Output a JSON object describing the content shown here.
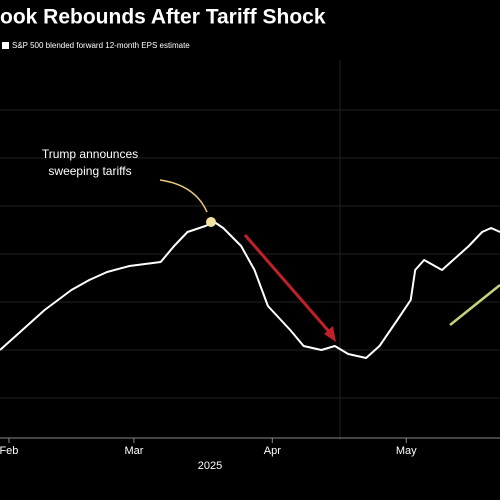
{
  "chart_data": {
    "type": "line",
    "title": "ook Rebounds After Tariff Shock",
    "legend_label": "S&P 500 blended forward 12-month EPS estimate",
    "annotation": [
      "Trump announces",
      "sweeping tariffs"
    ],
    "year_label": "2025",
    "x": [
      -2,
      2,
      8,
      14,
      18,
      22,
      27,
      34,
      37,
      40,
      44,
      46,
      48,
      52,
      55,
      58,
      63,
      66,
      70,
      73,
      76,
      80,
      83,
      87,
      90,
      91,
      93,
      97,
      100,
      103,
      106,
      108,
      110
    ],
    "series": [
      {
        "name": "S&P 500 blended forward 12-month EPS estimate",
        "color": "#ffffff",
        "values": [
          25,
          29,
          35,
          40,
          42.5,
          44.5,
          46,
          47,
          51,
          54.5,
          56,
          57,
          55.5,
          51,
          45,
          36,
          30,
          26,
          25,
          26,
          24,
          23,
          26,
          32.5,
          37.5,
          45,
          47.5,
          45,
          48,
          51,
          54.5,
          55.5,
          54.5
        ]
      }
    ],
    "xlim": [
      -2,
      110
    ],
    "ylim": [
      0,
      100
    ],
    "xticks": [
      {
        "value": 0,
        "label": "Feb"
      },
      {
        "value": 28,
        "label": "Mar"
      },
      {
        "value": 59,
        "label": "Apr"
      },
      {
        "value": 89,
        "label": "May"
      }
    ]
  }
}
